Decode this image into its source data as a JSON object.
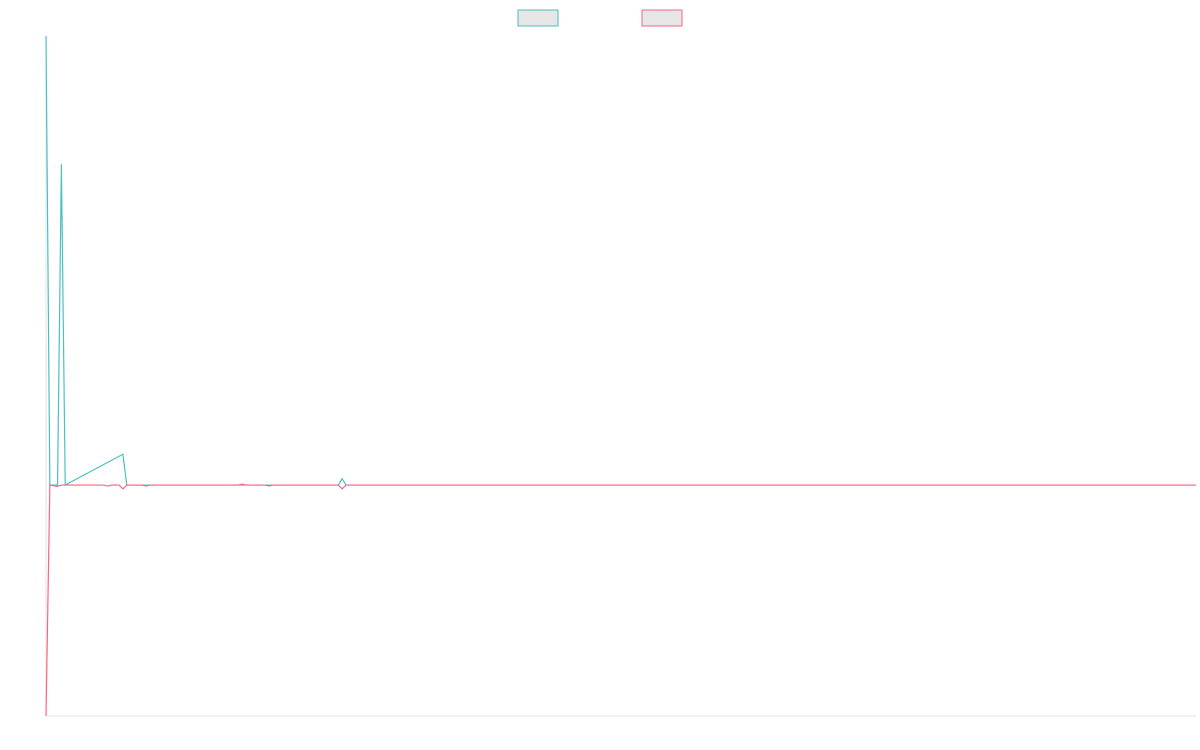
{
  "chart_data": {
    "type": "line",
    "title": "",
    "xlabel": "",
    "ylabel": "",
    "grid": false,
    "legend_position": "top",
    "x_count": 300,
    "ylim": [
      -36,
      70
    ],
    "series": [
      {
        "name": "",
        "color": "#4bc0c0",
        "fill": "#e6e6e6",
        "points": [
          {
            "x": 0,
            "y": 70
          },
          {
            "x": 1,
            "y": 0
          },
          {
            "x": 2,
            "y": 0
          },
          {
            "x": 3,
            "y": 0
          },
          {
            "x": 4,
            "y": 50
          },
          {
            "x": 5,
            "y": 0
          },
          {
            "x": 20,
            "y": 4.8
          },
          {
            "x": 21,
            "y": 0
          },
          {
            "x": 50,
            "y": 0
          },
          {
            "x": 76,
            "y": 0
          },
          {
            "x": 77,
            "y": 1.0
          },
          {
            "x": 78,
            "y": 0
          },
          {
            "x": 299,
            "y": 0
          }
        ]
      },
      {
        "name": "",
        "color": "#ff6384",
        "fill": "#e6e6e6",
        "points": [
          {
            "x": 0,
            "y": -36
          },
          {
            "x": 1,
            "y": 0
          },
          {
            "x": 3,
            "y": -0.2
          },
          {
            "x": 4,
            "y": 0
          },
          {
            "x": 15,
            "y": 0
          },
          {
            "x": 16,
            "y": -0.15
          },
          {
            "x": 17,
            "y": 0
          },
          {
            "x": 19,
            "y": 0
          },
          {
            "x": 20,
            "y": -0.6
          },
          {
            "x": 21,
            "y": 0
          },
          {
            "x": 25,
            "y": 0
          },
          {
            "x": 26,
            "y": -0.15
          },
          {
            "x": 27,
            "y": 0
          },
          {
            "x": 50,
            "y": 0
          },
          {
            "x": 51,
            "y": 0.15
          },
          {
            "x": 52,
            "y": 0
          },
          {
            "x": 57,
            "y": 0
          },
          {
            "x": 58,
            "y": -0.15
          },
          {
            "x": 59,
            "y": 0
          },
          {
            "x": 76,
            "y": 0
          },
          {
            "x": 77,
            "y": -0.6
          },
          {
            "x": 78,
            "y": 0
          },
          {
            "x": 299,
            "y": 0
          }
        ]
      }
    ]
  }
}
